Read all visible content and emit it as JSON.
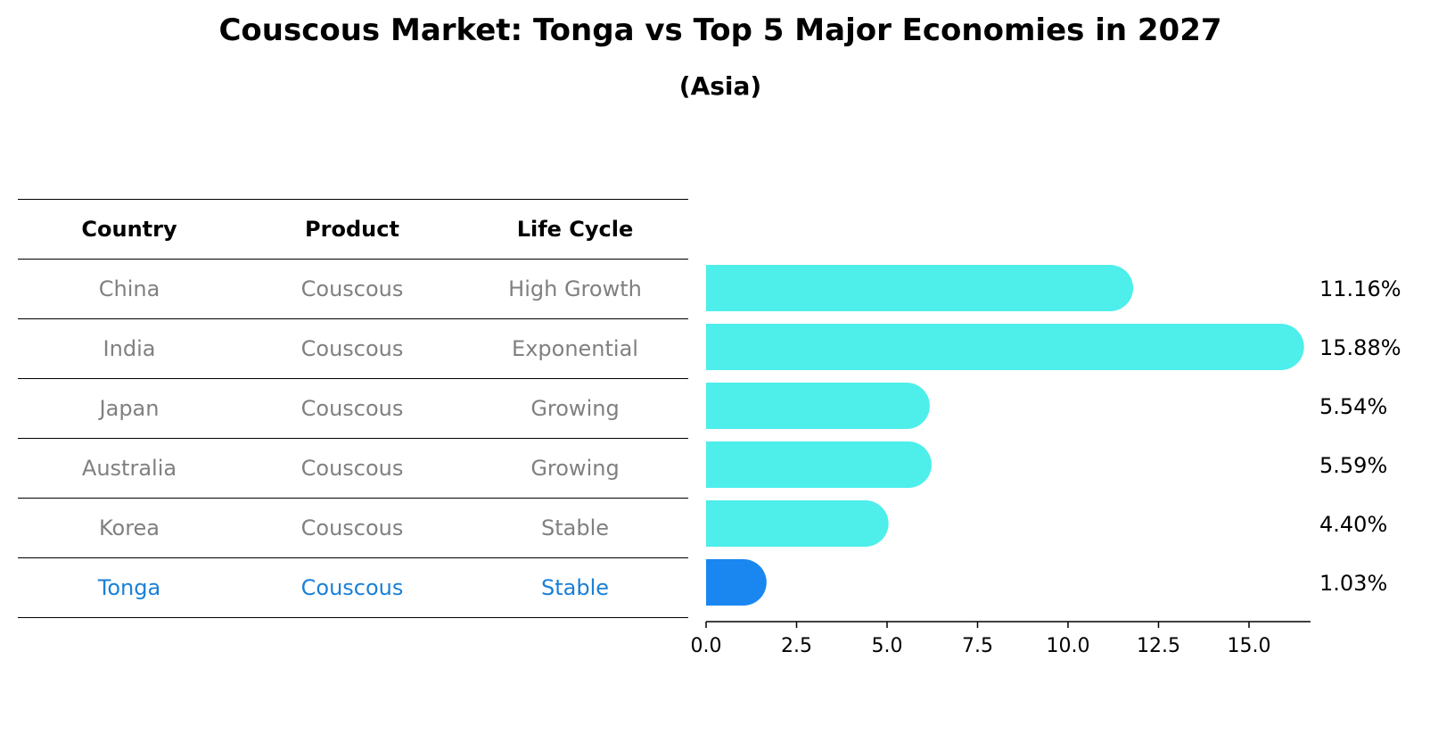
{
  "title": "Couscous Market: Tonga vs Top 5 Major Economies in 2027",
  "subtitle": "(Asia)",
  "table": {
    "headers": [
      "Country",
      "Product",
      "Life Cycle"
    ],
    "rows": [
      {
        "country": "China",
        "product": "Couscous",
        "life_cycle": "High Growth"
      },
      {
        "country": "India",
        "product": "Couscous",
        "life_cycle": "Exponential"
      },
      {
        "country": "Japan",
        "product": "Couscous",
        "life_cycle": "Growing"
      },
      {
        "country": "Australia",
        "product": "Couscous",
        "life_cycle": "Growing"
      },
      {
        "country": "Korea",
        "product": "Couscous",
        "life_cycle": "Stable"
      },
      {
        "country": "Tonga",
        "product": "Couscous",
        "life_cycle": "Stable"
      }
    ]
  },
  "chart_data": {
    "type": "bar",
    "orientation": "horizontal",
    "categories": [
      "China",
      "India",
      "Japan",
      "Australia",
      "Korea",
      "Tonga"
    ],
    "values": [
      11.16,
      15.88,
      5.54,
      5.59,
      4.4,
      1.03
    ],
    "value_labels": [
      "11.16%",
      "15.88%",
      "5.54%",
      "5.59%",
      "4.40%",
      "1.03%"
    ],
    "xlim": [
      0,
      16.7
    ],
    "xticks": [
      0.0,
      2.5,
      5.0,
      7.5,
      10.0,
      12.5,
      15.0
    ],
    "xtick_labels": [
      "0.0",
      "2.5",
      "5.0",
      "7.5",
      "10.0",
      "12.5",
      "15.0"
    ],
    "highlight": "Tonga",
    "colors": {
      "default": "#4eeeeb",
      "highlight": "#1a87f0",
      "table_text": "#808080",
      "table_highlight_text": "#1a80d6"
    }
  }
}
